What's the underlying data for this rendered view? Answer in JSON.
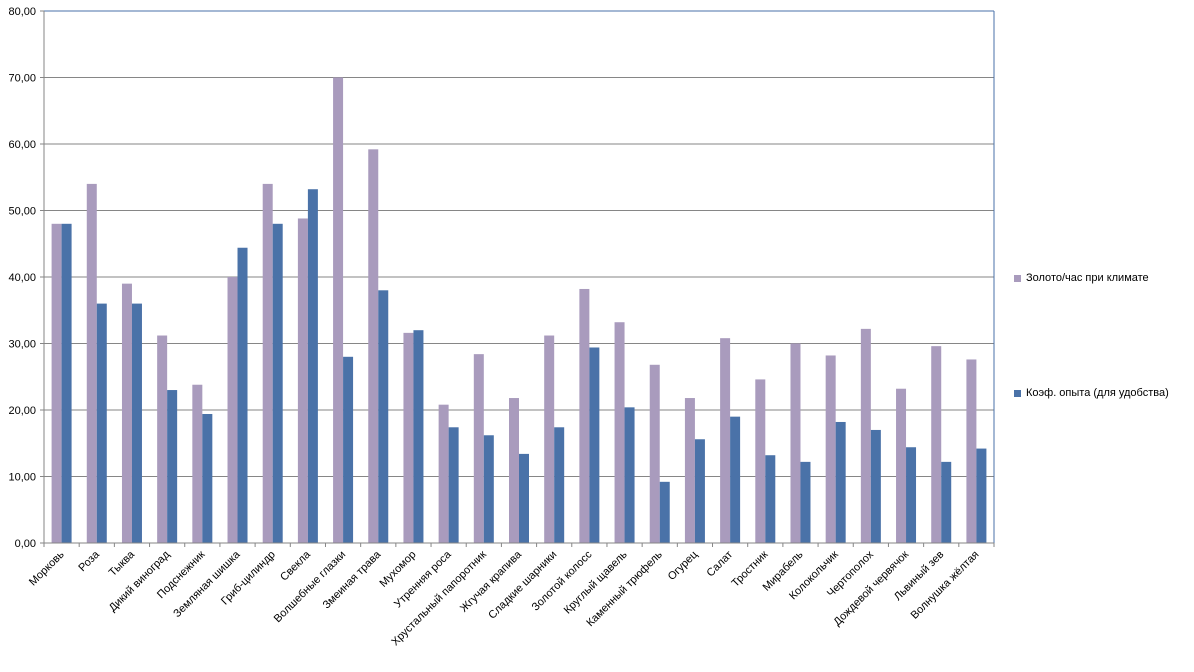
{
  "chart_data": {
    "type": "bar",
    "categories": [
      "Морковь",
      "Роза",
      "Тыква",
      "Дикий виноград",
      "Подснежник",
      "Земляная шишка",
      "Гриб-цилиндр",
      "Свекла",
      "Волшебные глазки",
      "Змеиная трава",
      "Мухомор",
      "Утренняя роса",
      "Хрустальный папоротник",
      "Жгучая крапива",
      "Сладкие шарники",
      "Золотой колосс",
      "Круглый щавель",
      "Каменный трюфель",
      "Огурец",
      "Салат",
      "Тростник",
      "Мирабель",
      "Колокольчик",
      "Чертополох",
      "Дождевой червячок",
      "Львиный зев",
      "Волнушка жёлтая"
    ],
    "series": [
      {
        "name": "Золото/час при климате",
        "color": "#A99BBD",
        "values": [
          48.0,
          54.0,
          39.0,
          31.2,
          23.8,
          40.0,
          54.0,
          48.8,
          70.0,
          59.2,
          31.6,
          20.8,
          28.4,
          21.8,
          31.2,
          38.2,
          33.2,
          26.8,
          21.8,
          30.8,
          24.6,
          30.0,
          28.2,
          32.2,
          23.2,
          29.6,
          27.6
        ]
      },
      {
        "name": "Коэф. опыта (для удобства)",
        "color": "#4A72A8",
        "values": [
          48.0,
          36.0,
          36.0,
          23.0,
          19.4,
          44.4,
          48.0,
          53.2,
          28.0,
          38.0,
          32.0,
          17.4,
          16.2,
          13.4,
          17.4,
          29.4,
          20.4,
          9.2,
          15.6,
          19.0,
          13.2,
          12.2,
          18.2,
          17.0,
          14.4,
          12.2,
          14.2
        ]
      }
    ],
    "ylim": [
      0,
      80
    ],
    "yticks": [
      "0,00",
      "10,00",
      "20,00",
      "30,00",
      "40,00",
      "50,00",
      "60,00",
      "70,00",
      "80,00"
    ],
    "grid": true,
    "legend_position": "right",
    "gridline_color": "#868686",
    "plot_border_color": "#4A72A8"
  }
}
